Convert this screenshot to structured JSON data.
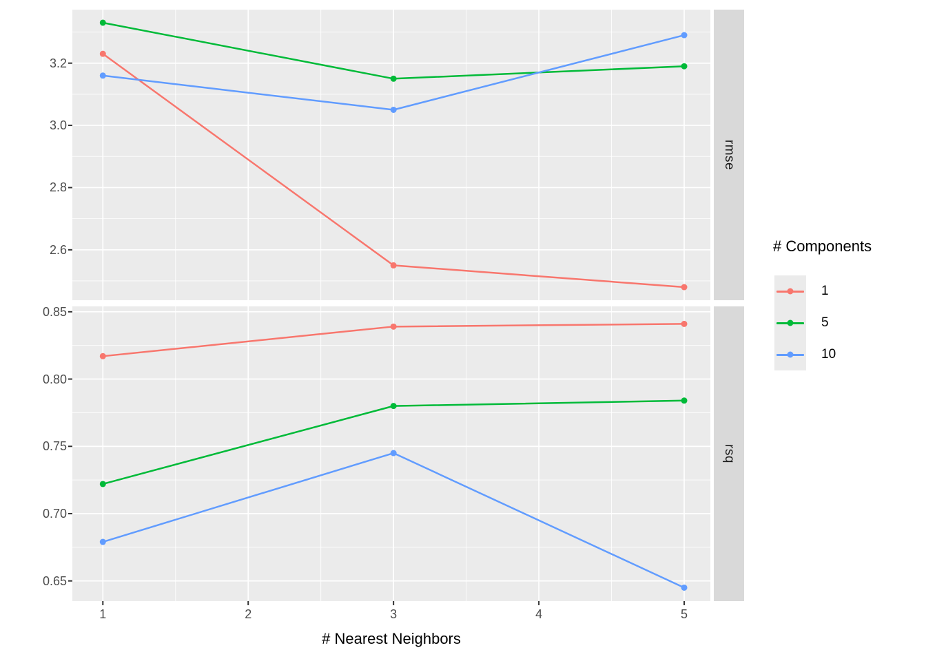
{
  "figure": {
    "background": "#ffffff",
    "panel_background": "#ebebeb",
    "grid_color": "#ffffff",
    "strip_background": "#d9d9d9",
    "axis_text_color": "#4d4d4d",
    "tick_mark_color": "#333333"
  },
  "legend": {
    "title": "# Components",
    "items": [
      {
        "label": "1",
        "color": "#F8766D"
      },
      {
        "label": "5",
        "color": "#00BA38"
      },
      {
        "label": "10",
        "color": "#619CFF"
      }
    ]
  },
  "chart_data": {
    "type": "line",
    "title": "",
    "xlabel": "# Nearest Neighbors",
    "ylabel": "",
    "legend_title": "# Components",
    "legend_position": "right",
    "grid": true,
    "x": [
      1,
      3,
      5
    ],
    "x_ticks": [
      1,
      2,
      3,
      4,
      5
    ],
    "x_tick_labels": [
      "1",
      "2",
      "3",
      "4",
      "5"
    ],
    "x_minor_ticks": [
      1.5,
      2.5,
      3.5,
      4.5
    ],
    "x_range": [
      0.79,
      5.18
    ],
    "facets": [
      {
        "label": "rmse",
        "y_range": [
          2.438,
          3.372
        ],
        "y_ticks": [
          2.6,
          2.8,
          3.0,
          3.2
        ],
        "y_tick_labels": [
          "2.6",
          "2.8",
          "3.0",
          "3.2"
        ],
        "y_minor_ticks": [
          2.5,
          2.7,
          2.9,
          3.1,
          3.3
        ],
        "series": [
          {
            "name": "1",
            "values": [
              3.23,
              2.55,
              2.48
            ]
          },
          {
            "name": "5",
            "values": [
              3.33,
              3.15,
              3.19
            ]
          },
          {
            "name": "10",
            "values": [
              3.16,
              3.05,
              3.29
            ]
          }
        ]
      },
      {
        "label": "rsq",
        "y_range": [
          0.635,
          0.854
        ],
        "y_ticks": [
          0.65,
          0.7,
          0.75,
          0.8,
          0.85
        ],
        "y_tick_labels": [
          "0.65",
          "0.70",
          "0.75",
          "0.80",
          "0.85"
        ],
        "y_minor_ticks": [
          0.675,
          0.725,
          0.775,
          0.825
        ],
        "series": [
          {
            "name": "1",
            "values": [
              0.817,
              0.839,
              0.841
            ]
          },
          {
            "name": "5",
            "values": [
              0.722,
              0.78,
              0.784
            ]
          },
          {
            "name": "10",
            "values": [
              0.679,
              0.745,
              0.645
            ]
          }
        ]
      }
    ]
  }
}
